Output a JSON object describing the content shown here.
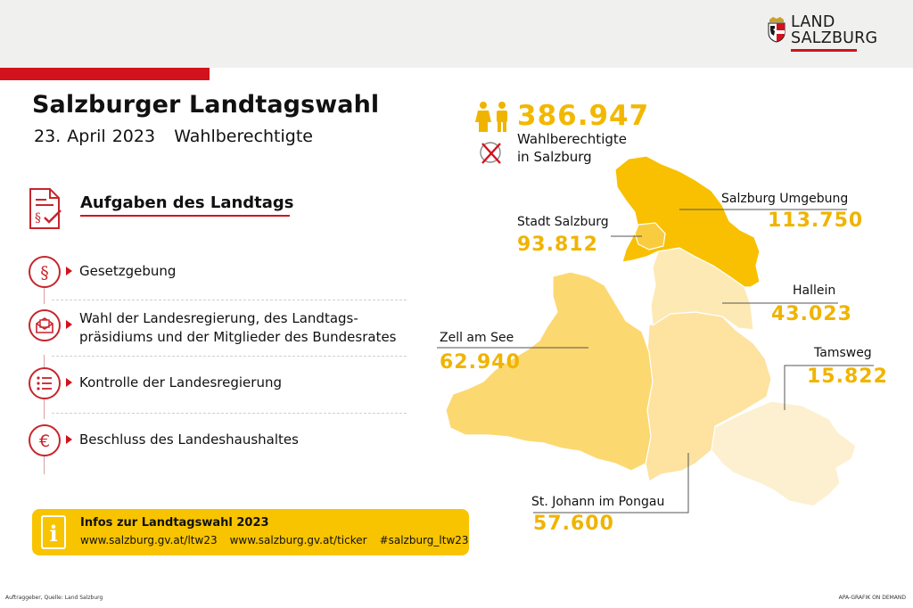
{
  "logo": {
    "line1": "LAND",
    "line2": "SALZBURG"
  },
  "header": {
    "title": "Salzburger Landtagswahl",
    "date": "23. April 2023",
    "subtitle": "Wahlberechtigte"
  },
  "tasks": {
    "heading": "Aufgaben des Landtags",
    "items": [
      {
        "label": "Gesetzgebung",
        "icon": "paragraph-icon"
      },
      {
        "label_line1": "Wahl der Landesregierung, des Landtags-",
        "label_line2": "präsidiums und der Mitglieder des Bundesrates",
        "icon": "ballot-envelope-icon"
      },
      {
        "label": "Kontrolle der Landesregierung",
        "icon": "checklist-icon"
      },
      {
        "label": "Beschluss des Landeshaushaltes",
        "icon": "euro-icon"
      }
    ]
  },
  "info": {
    "title": "Infos zur Landtagswahl 2023",
    "links": [
      "www.salzburg.gv.at/ltw23",
      "www.salzburg.gv.at/ticker",
      "#salzburg_ltw23"
    ]
  },
  "total": {
    "value": "386.947",
    "label_line1": "Wahlberechtigte",
    "label_line2": "in Salzburg"
  },
  "regions": [
    {
      "name": "Salzburg Umgebung",
      "value": "113.750",
      "color": "#f8c000"
    },
    {
      "name": "Stadt Salzburg",
      "value": "93.812",
      "color": "#f9cc40"
    },
    {
      "name": "Hallein",
      "value": "43.023",
      "color": "#fde9b4"
    },
    {
      "name": "Zell am See",
      "value": "62.940",
      "color": "#fcd870"
    },
    {
      "name": "Tamsweg",
      "value": "15.822",
      "color": "#fdf0d0"
    },
    {
      "name": "St. Johann im Pongau",
      "value": "57.600",
      "color": "#fde2a0"
    }
  ],
  "footer": {
    "left": "Auftraggeber, Quelle: Land Salzburg",
    "right": "APA-GRAFIK ON DEMAND"
  },
  "colors": {
    "red": "#d2121c",
    "yellow": "#f8c400",
    "value_yellow": "#f0b400"
  }
}
